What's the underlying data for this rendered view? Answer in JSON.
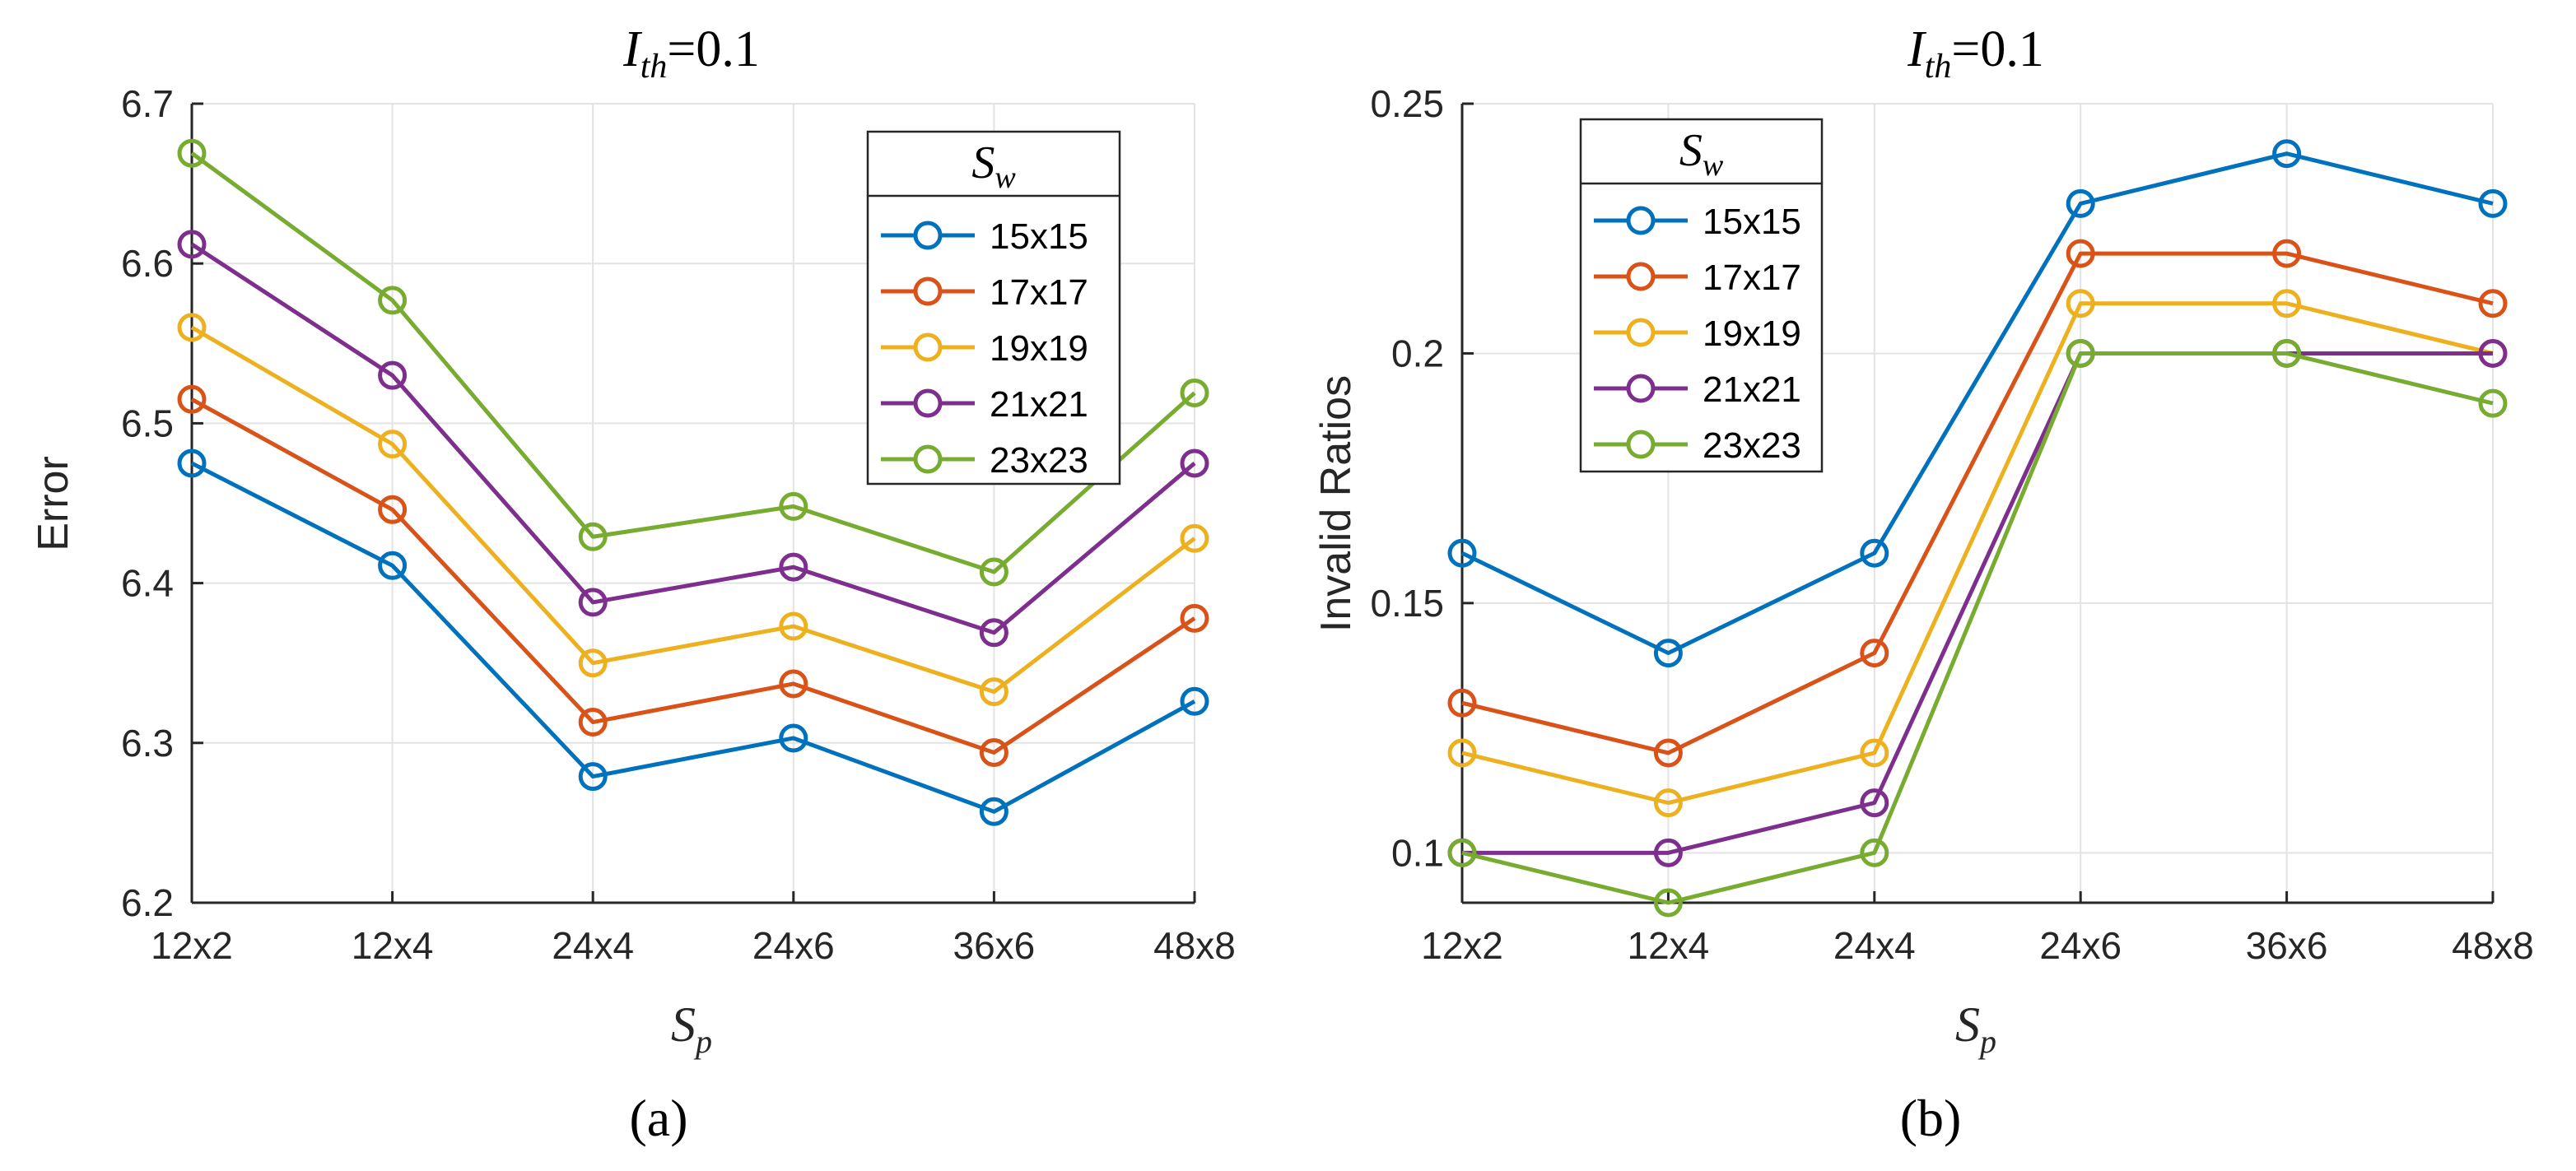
{
  "chart_data": [
    {
      "type": "line",
      "panel_label": "(a)",
      "title": "I_th=0.1",
      "title_symbol": "I",
      "title_subscript": "th",
      "title_value": "=0.1",
      "xlabel_symbol": "S",
      "xlabel_subscript": "p",
      "ylabel": "Error",
      "categories": [
        "12x2",
        "12x4",
        "24x4",
        "24x6",
        "36x6",
        "48x8"
      ],
      "ylim": [
        6.2,
        6.7
      ],
      "yticks": [
        6.2,
        6.3,
        6.4,
        6.5,
        6.6,
        6.7
      ],
      "ytick_labels": [
        "6.2",
        "6.3",
        "6.4",
        "6.5",
        "6.6",
        "6.7"
      ],
      "grid": true,
      "legend": {
        "title_symbol": "S",
        "title_subscript": "w",
        "placement": "top-right"
      },
      "series": [
        {
          "name": "15x15",
          "color": "#0072BD",
          "values": [
            6.475,
            6.411,
            6.279,
            6.303,
            6.257,
            6.326
          ]
        },
        {
          "name": "17x17",
          "color": "#D95319",
          "values": [
            6.515,
            6.446,
            6.313,
            6.337,
            6.294,
            6.378
          ]
        },
        {
          "name": "19x19",
          "color": "#EDB120",
          "values": [
            6.56,
            6.487,
            6.35,
            6.373,
            6.332,
            6.428
          ]
        },
        {
          "name": "21x21",
          "color": "#7E2F8E",
          "values": [
            6.612,
            6.53,
            6.388,
            6.41,
            6.369,
            6.475
          ]
        },
        {
          "name": "23x23",
          "color": "#77AC30",
          "values": [
            6.669,
            6.577,
            6.429,
            6.448,
            6.407,
            6.519
          ]
        }
      ]
    },
    {
      "type": "line",
      "panel_label": "(b)",
      "title": "I_th=0.1",
      "title_symbol": "I",
      "title_subscript": "th",
      "title_value": "=0.1",
      "xlabel_symbol": "S",
      "xlabel_subscript": "p",
      "ylabel": "Invalid Ratios",
      "categories": [
        "12x2",
        "12x4",
        "24x4",
        "24x6",
        "36x6",
        "48x8"
      ],
      "ylim": [
        0.09,
        0.25
      ],
      "yticks": [
        0.1,
        0.15,
        0.2,
        0.25
      ],
      "ytick_labels": [
        "0.1",
        "0.15",
        "0.2",
        "0.25"
      ],
      "grid": true,
      "legend": {
        "title_symbol": "S",
        "title_subscript": "w",
        "placement": "top-left"
      },
      "series": [
        {
          "name": "15x15",
          "color": "#0072BD",
          "values": [
            0.16,
            0.14,
            0.16,
            0.23,
            0.24,
            0.23
          ]
        },
        {
          "name": "17x17",
          "color": "#D95319",
          "values": [
            0.13,
            0.12,
            0.14,
            0.22,
            0.22,
            0.21
          ]
        },
        {
          "name": "19x19",
          "color": "#EDB120",
          "values": [
            0.12,
            0.11,
            0.12,
            0.21,
            0.21,
            0.2
          ]
        },
        {
          "name": "21x21",
          "color": "#7E2F8E",
          "values": [
            0.1,
            0.1,
            0.11,
            0.2,
            0.2,
            0.2
          ]
        },
        {
          "name": "23x23",
          "color": "#77AC30",
          "values": [
            0.1,
            0.09,
            0.1,
            0.2,
            0.2,
            0.19
          ]
        }
      ]
    }
  ]
}
